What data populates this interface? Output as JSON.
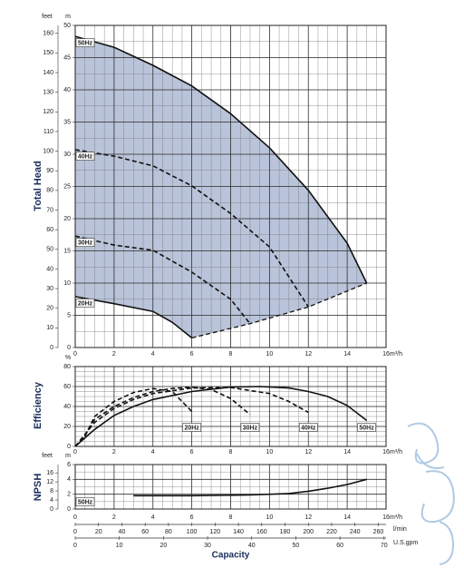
{
  "chart_data": [
    {
      "type": "line",
      "axis_title": "Total Head",
      "y_unit": "m",
      "y2_unit": "feet",
      "x_unit": "m³/h",
      "xlim": [
        0,
        16
      ],
      "xticks": [
        0,
        2,
        4,
        6,
        8,
        10,
        12,
        14,
        16
      ],
      "ylim": [
        0,
        50
      ],
      "yticks": [
        0,
        5,
        10,
        15,
        20,
        25,
        30,
        35,
        40,
        45,
        50
      ],
      "y2lim": [
        0,
        164.04
      ],
      "y2ticks": [
        0,
        10,
        20,
        30,
        40,
        50,
        60,
        70,
        80,
        90,
        100,
        110,
        120,
        130,
        140,
        150,
        160
      ],
      "grid": true,
      "fill_color": "#b9c3d9",
      "series": [
        {
          "name": "50Hz",
          "color": "#111111",
          "dash": false,
          "x": [
            0,
            2,
            4,
            6,
            8,
            10,
            12,
            14,
            15
          ],
          "values": [
            48.3,
            46.6,
            43.8,
            40.6,
            36.3,
            31,
            24.4,
            16.2,
            10
          ]
        },
        {
          "name": "40Hz",
          "color": "#111111",
          "dash": true,
          "x": [
            0,
            2,
            4,
            6,
            8,
            10,
            12
          ],
          "values": [
            30.7,
            29.7,
            28.2,
            25.1,
            20.8,
            15.6,
            6.3
          ]
        },
        {
          "name": "30Hz",
          "color": "#111111",
          "dash": true,
          "x": [
            0,
            2,
            4,
            6,
            8,
            9
          ],
          "values": [
            17.3,
            15.9,
            15.1,
            11.7,
            7.5,
            3.7
          ]
        },
        {
          "name": "20Hz",
          "color": "#111111",
          "dash": false,
          "x": [
            0,
            2,
            4,
            5,
            6
          ],
          "values": [
            7.9,
            6.8,
            5.6,
            3.9,
            1.5
          ]
        }
      ],
      "min_flow": {
        "x": [
          6,
          9,
          12,
          15
        ],
        "values": [
          1.5,
          3.7,
          6.3,
          10
        ]
      }
    },
    {
      "type": "line",
      "axis_title": "Efficiency",
      "y_unit": "%",
      "x_unit": "m³/h",
      "xlim": [
        0,
        16
      ],
      "xticks": [
        0,
        2,
        4,
        6,
        8,
        10,
        12,
        14,
        16
      ],
      "ylim": [
        0,
        80
      ],
      "yticks": [
        0,
        20,
        40,
        60,
        80
      ],
      "grid": true,
      "series": [
        {
          "name": "20Hz",
          "color": "#111111",
          "dash": true,
          "x": [
            0.5,
            1,
            2,
            3,
            4,
            5,
            6
          ],
          "values": [
            10,
            30,
            45,
            54,
            58,
            55,
            35
          ]
        },
        {
          "name": "30Hz",
          "color": "#111111",
          "dash": true,
          "x": [
            0.3,
            1,
            2,
            3,
            4,
            5,
            6,
            7,
            8,
            9
          ],
          "values": [
            5,
            27,
            40,
            49,
            55,
            58,
            59.5,
            57,
            48,
            32
          ]
        },
        {
          "name": "40Hz",
          "color": "#111111",
          "dash": true,
          "x": [
            0,
            1,
            2,
            3,
            4,
            6,
            8,
            10,
            11,
            12
          ],
          "values": [
            0,
            24,
            38,
            47,
            53,
            58.5,
            59,
            53,
            45,
            34
          ]
        },
        {
          "name": "50Hz",
          "color": "#111111",
          "dash": false,
          "x": [
            0,
            1,
            2,
            3,
            4,
            6,
            8,
            9.5,
            11,
            12,
            13,
            14,
            15
          ],
          "values": [
            0,
            17,
            31,
            40,
            47,
            55,
            59.5,
            60,
            58.5,
            55,
            50,
            41,
            26
          ]
        }
      ]
    },
    {
      "type": "line",
      "axis_title": "NPSH",
      "y_unit": "m",
      "y2_unit": "feet",
      "x_unit": "m³/h",
      "x_title": "Capacity",
      "xlim": [
        0,
        16
      ],
      "xticks": [
        0,
        2,
        4,
        6,
        8,
        10,
        12,
        14,
        16
      ],
      "ylim": [
        0,
        6
      ],
      "yticks": [
        0,
        2,
        4,
        6
      ],
      "y2lim": [
        0,
        19.69
      ],
      "y2ticks": [
        0,
        4,
        8,
        12,
        16
      ],
      "grid": true,
      "series": [
        {
          "name": "50Hz",
          "color": "#111111",
          "dash": false,
          "x": [
            3,
            6,
            9,
            11,
            12,
            13,
            14,
            15
          ],
          "values": [
            1.8,
            1.8,
            1.9,
            2.1,
            2.4,
            2.8,
            3.3,
            4.0
          ]
        }
      ],
      "x2": {
        "unit": "l/min",
        "lim": [
          0,
          266.67
        ],
        "ticks": [
          0,
          20,
          40,
          60,
          80,
          100,
          120,
          140,
          160,
          180,
          200,
          220,
          240,
          260
        ]
      },
      "x3": {
        "unit": "U.S.gpm",
        "lim": [
          0,
          70.45
        ],
        "ticks": [
          0,
          10,
          20,
          30,
          40,
          50,
          60,
          70
        ]
      }
    }
  ]
}
